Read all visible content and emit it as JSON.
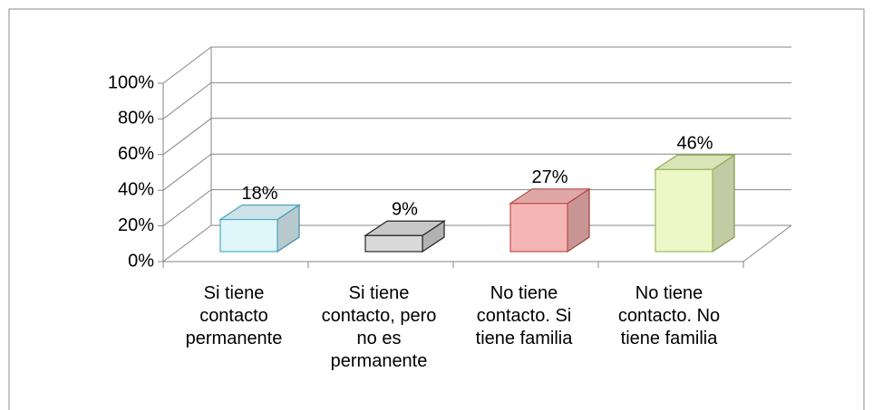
{
  "chart_data": {
    "type": "bar3d",
    "categories": [
      "Si tiene contacto permanente",
      "Si tiene contacto, pero no es permanente",
      "No tiene contacto. Si tiene familia",
      "No tiene contacto. No tiene familia"
    ],
    "values": [
      18,
      9,
      27,
      46
    ],
    "value_labels": [
      "18%",
      "9%",
      "27%",
      "46%"
    ],
    "colors": [
      "#dff6fb",
      "#d9d9d9",
      "#f4b6b5",
      "#ecf8c8"
    ],
    "edge_colors": [
      "#4bacc6",
      "#262626",
      "#c0504d",
      "#9bbb59"
    ],
    "ylim": [
      0,
      100
    ],
    "yticks": [
      {
        "value": 0,
        "label": "0%"
      },
      {
        "value": 20,
        "label": "20%"
      },
      {
        "value": 40,
        "label": "40%"
      },
      {
        "value": 60,
        "label": "60%"
      },
      {
        "value": 80,
        "label": "80%"
      },
      {
        "value": 100,
        "label": "100%"
      }
    ],
    "grid": true
  }
}
